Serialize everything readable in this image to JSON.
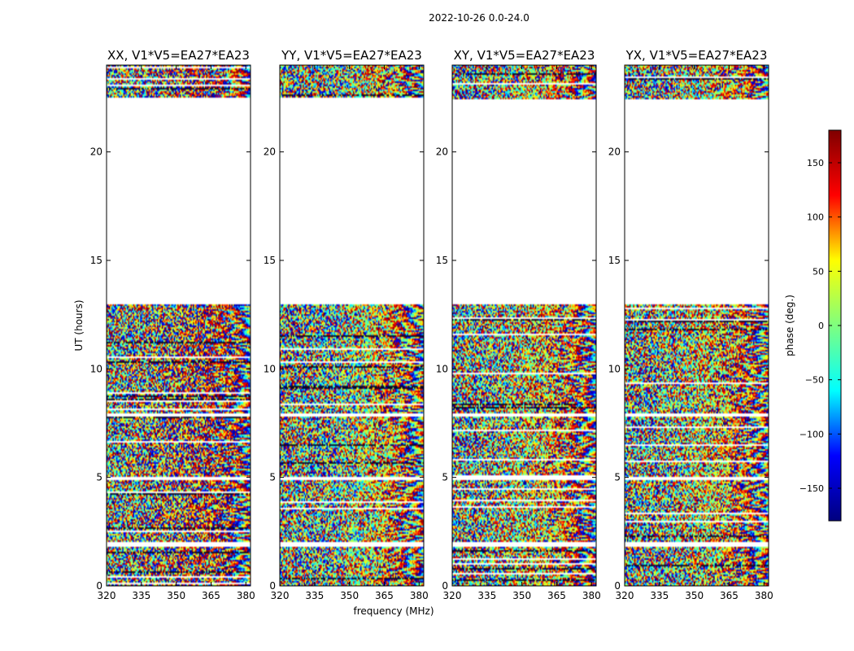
{
  "figure_title": "2022-10-26 0.0-24.0",
  "chart_data": {
    "type": "heatmap",
    "suptitle": "2022-10-26 0.0-24.0",
    "xlabel": "frequency (MHz)",
    "ylabel": "UT (hours)",
    "xlim": [
      320,
      382
    ],
    "ylim": [
      0,
      24
    ],
    "xticks": [
      320,
      335,
      350,
      365,
      380
    ],
    "yticks": [
      0,
      5,
      10,
      15,
      20
    ],
    "panels": [
      {
        "title": "XX, V1*V5=EA27*EA23",
        "bias": 110
      },
      {
        "title": "YY, V1*V5=EA27*EA23",
        "bias": -40
      },
      {
        "title": "XY, V1*V5=EA27*EA23",
        "bias": 0
      },
      {
        "title": "YX, V1*V5=EA27*EA23",
        "bias": 0
      }
    ],
    "data_segments_ut": [
      [
        0,
        1.8
      ],
      [
        2.0,
        4.9
      ],
      [
        5.0,
        7.8
      ],
      [
        7.95,
        12.95
      ],
      [
        22.4,
        24.0
      ]
    ],
    "colorbar": {
      "label": "phase (deg.)",
      "range": [
        -180,
        180
      ],
      "ticks": [
        -150,
        -100,
        -50,
        0,
        50,
        100,
        150
      ],
      "colormap": [
        "#00007f",
        "#0000ff",
        "#00ffff",
        "#7fff7f",
        "#ffff00",
        "#ff0000",
        "#7f0000"
      ]
    }
  }
}
